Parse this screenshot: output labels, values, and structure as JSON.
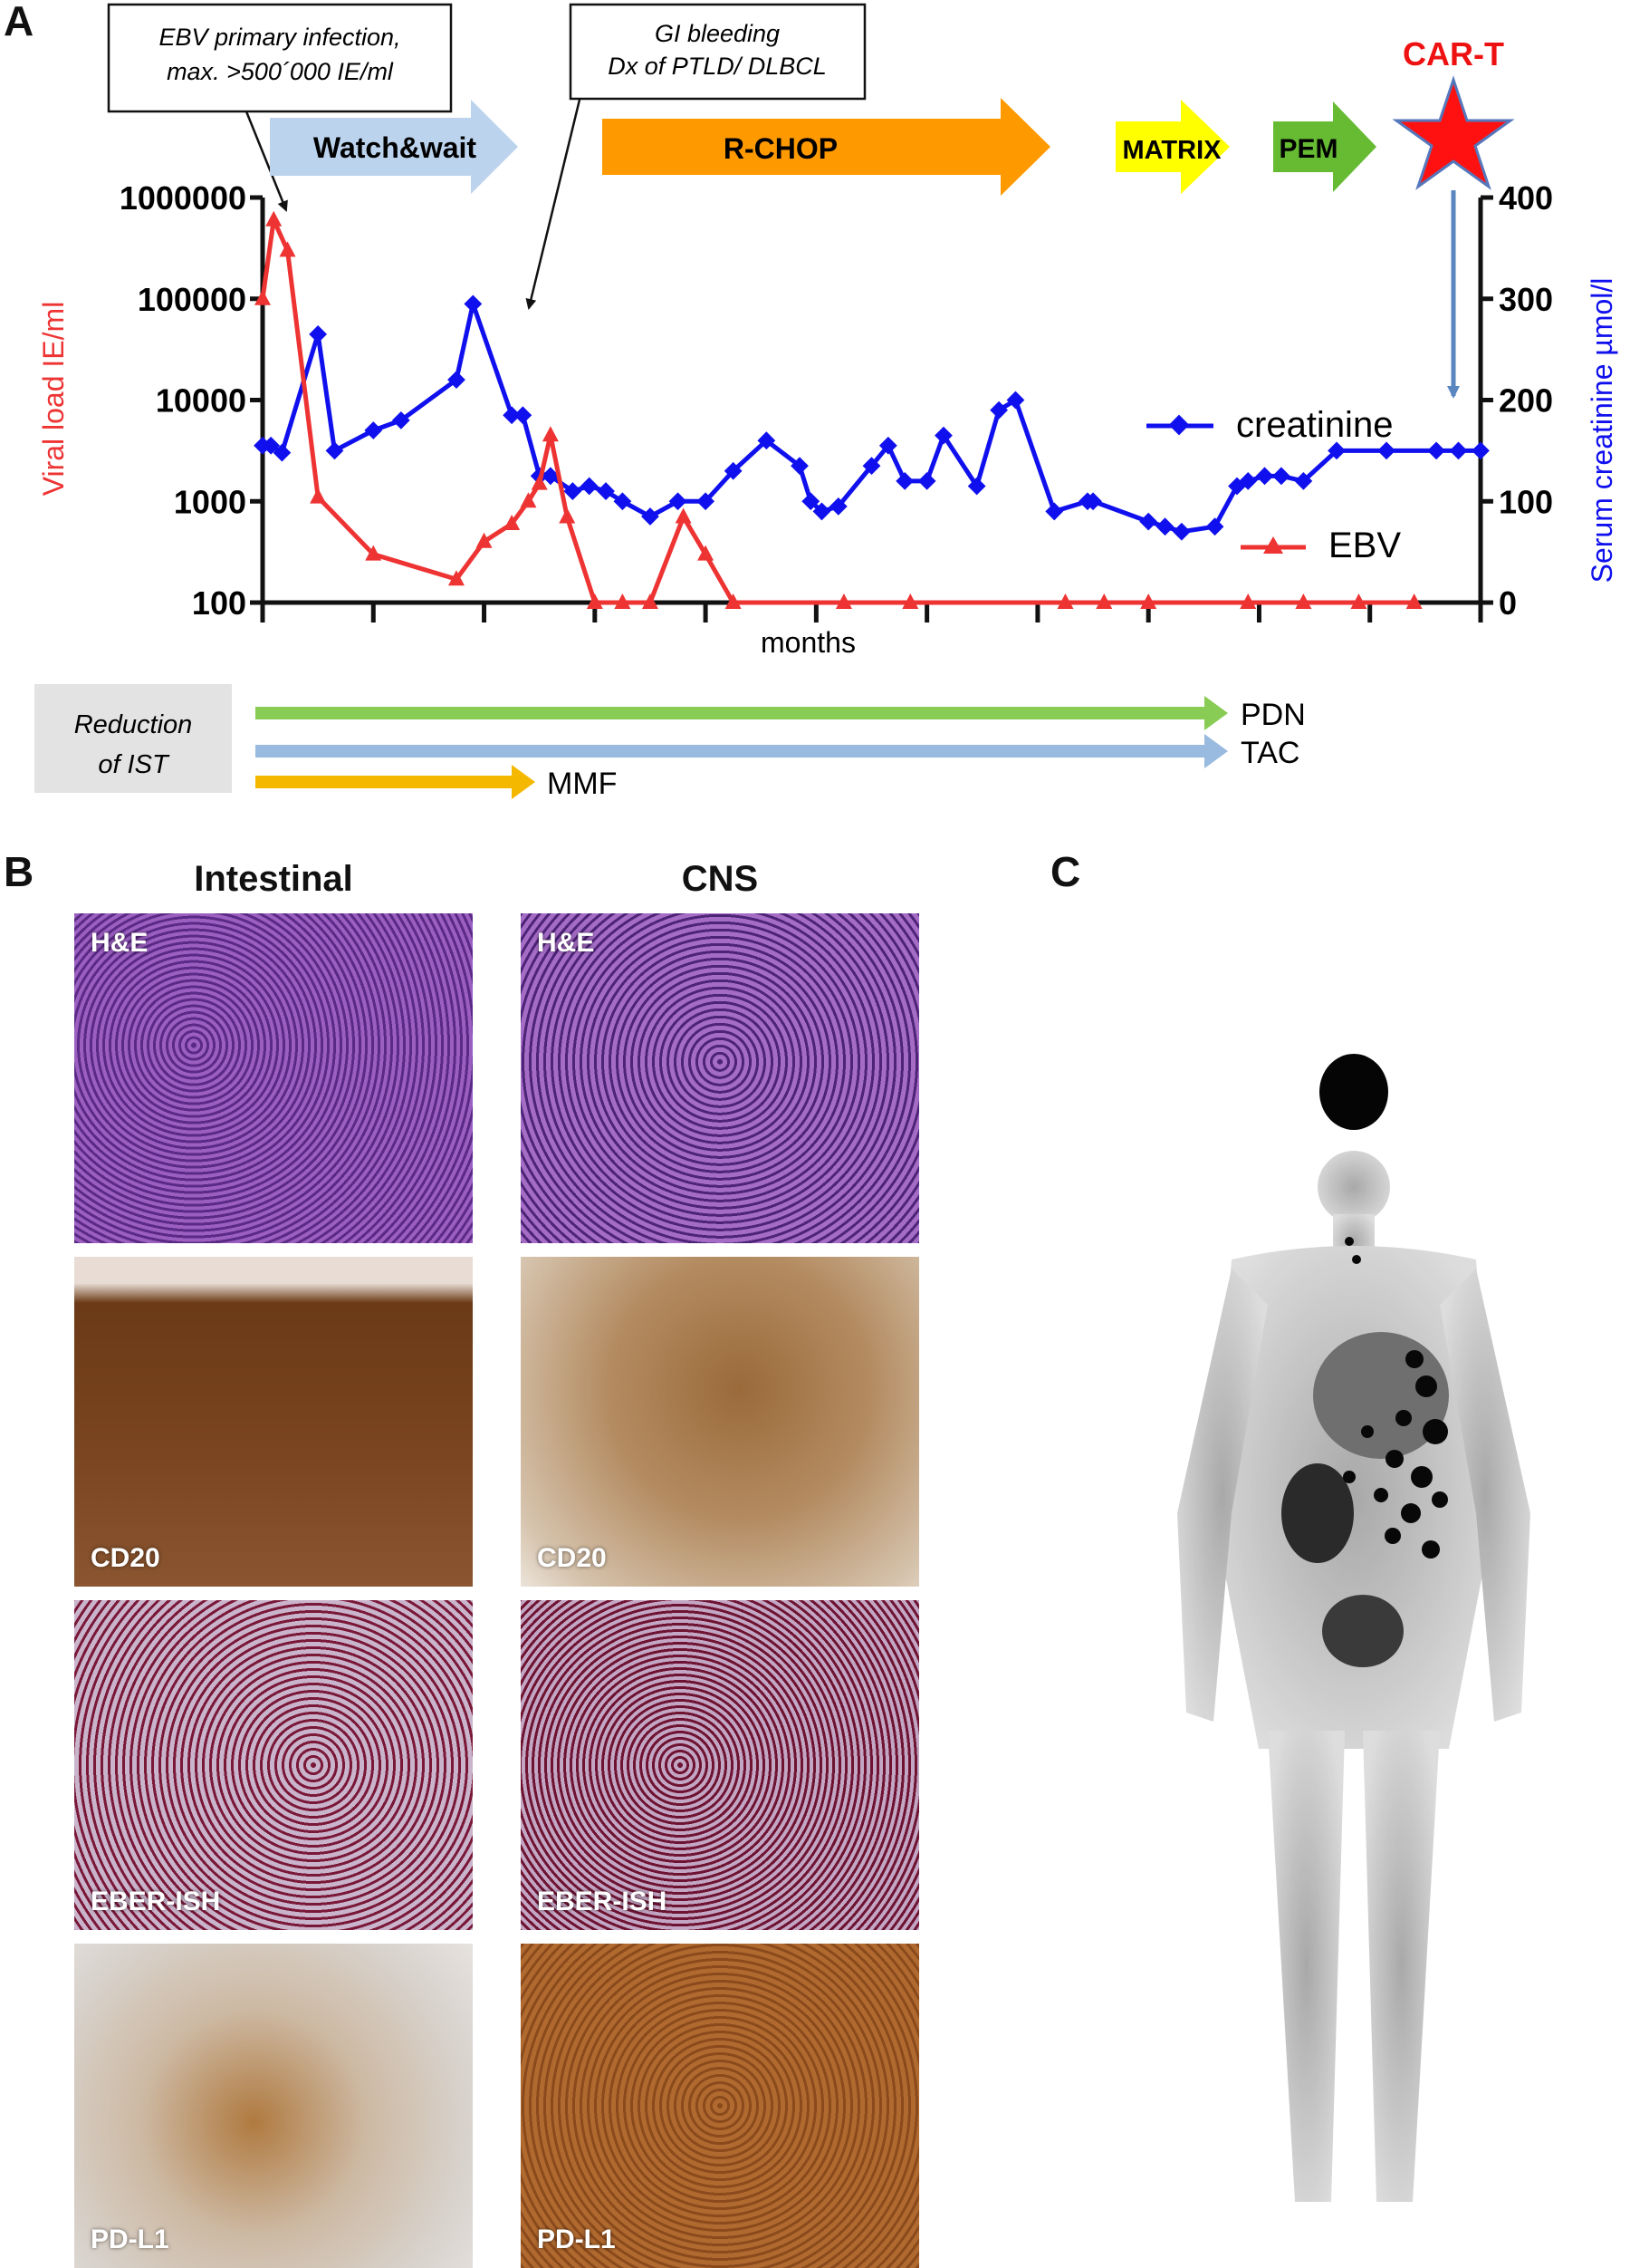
{
  "panels": {
    "a": "A",
    "b": "B",
    "c": "C"
  },
  "callouts": [
    {
      "line1": "EBV primary infection,",
      "line2": "max. >500´000 IE/ml"
    },
    {
      "line1": "GI bleeding",
      "line2": "Dx of PTLD/ DLBCL"
    }
  ],
  "treatments": [
    {
      "label": "Watch&wait",
      "color": "#bcd3ee"
    },
    {
      "label": "R-CHOP",
      "color": "#ff9900"
    },
    {
      "label": "MATRIX",
      "color": "#ffff00"
    },
    {
      "label": "PEM",
      "color": "#66bb33"
    }
  ],
  "car_t": {
    "label": "CAR-T",
    "color": "#ee1111"
  },
  "ist": {
    "box_line1": "Reduction",
    "box_line2": "of IST",
    "drugs": [
      {
        "label": "PDN",
        "color": "#88cc55"
      },
      {
        "label": "TAC",
        "color": "#99bbe0"
      },
      {
        "label": "MMF",
        "color": "#f5b800"
      }
    ]
  },
  "chart_data": {
    "type": "line",
    "xlabel": "months",
    "ylabel_left": "Viral load IE/ml",
    "ylabel_right": "Serum creatinine µmol/l",
    "y_left_scale": "log",
    "y_left_ticks": [
      "100",
      "1000",
      "10000",
      "100000",
      "1000000"
    ],
    "y_right_ticks": [
      "0",
      "100",
      "200",
      "300",
      "400"
    ],
    "legend": [
      {
        "name": "creatinine",
        "color": "#1010ee",
        "marker": "diamond"
      },
      {
        "name": "EBV",
        "color": "#ee3333",
        "marker": "triangle"
      }
    ],
    "x_range": [
      0,
      22
    ],
    "series": [
      {
        "name": "creatinine",
        "axis": "right",
        "x": [
          0.0,
          0.15,
          0.35,
          1.0,
          1.3,
          2.0,
          2.5,
          3.5,
          3.8,
          4.5,
          4.7,
          5.0,
          5.2,
          5.6,
          5.9,
          6.2,
          6.5,
          7.0,
          7.5,
          8.0,
          8.5,
          9.1,
          9.7,
          9.9,
          10.1,
          10.4,
          11.0,
          11.3,
          11.6,
          12.0,
          12.3,
          12.9,
          13.3,
          13.6,
          14.3,
          14.9,
          15.0,
          16.0,
          16.3,
          16.6,
          17.2,
          17.6,
          17.8,
          18.1,
          18.4,
          18.8,
          19.4,
          20.3,
          21.2,
          21.6,
          22.0
        ],
        "y": [
          155,
          155,
          148,
          265,
          150,
          170,
          180,
          220,
          295,
          185,
          185,
          125,
          125,
          110,
          115,
          110,
          100,
          85,
          100,
          100,
          130,
          160,
          135,
          100,
          90,
          95,
          135,
          155,
          120,
          120,
          165,
          115,
          190,
          200,
          90,
          100,
          100,
          80,
          75,
          70,
          75,
          115,
          120,
          125,
          125,
          120,
          150,
          150,
          150,
          150,
          150
        ]
      },
      {
        "name": "EBV",
        "axis": "left",
        "x": [
          0.0,
          0.2,
          0.45,
          1.0,
          2.0,
          3.5,
          4.0,
          4.5,
          4.8,
          5.0,
          5.2,
          5.5,
          6.0,
          6.5,
          7.0,
          7.6,
          8.0,
          8.5,
          10.5,
          11.7,
          14.5,
          15.2,
          16.0,
          17.8,
          18.8,
          19.8,
          20.8
        ],
        "y": [
          100000,
          600000,
          300000,
          1100,
          300,
          170,
          400,
          600,
          1000,
          1500,
          4500,
          700,
          100,
          100,
          100,
          700,
          300,
          100,
          100,
          100,
          100,
          100,
          100,
          100,
          100,
          100,
          100
        ]
      }
    ]
  },
  "histology": {
    "columns": [
      "Intestinal",
      "CNS"
    ],
    "stains": [
      "H&E",
      "CD20",
      "EBER-ISH",
      "PD-L1"
    ]
  }
}
